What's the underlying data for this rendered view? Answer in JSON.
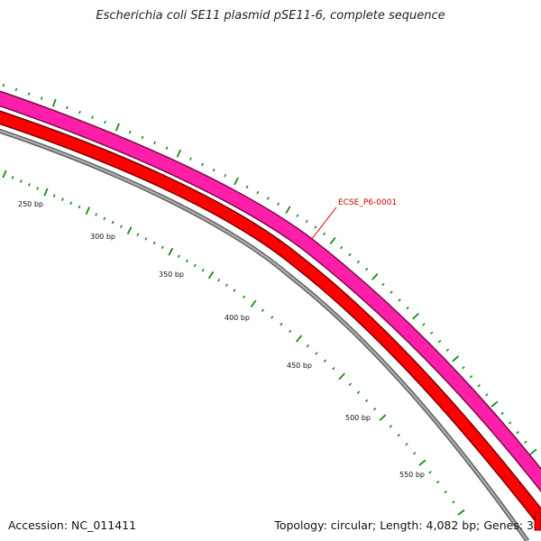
{
  "header": {
    "title": "Escherichia coli SE11 plasmid pSE11-6, complete sequence"
  },
  "footer": {
    "accession": "Accession: NC_011411",
    "summary": "Topology: circular; Length: 4,082 bp; Genes: 3"
  },
  "map": {
    "tick_labels": [
      "250 bp",
      "300 bp",
      "350 bp",
      "400 bp",
      "450 bp",
      "500 bp",
      "550 bp"
    ],
    "gene_label": "ECSE_P6-0001",
    "colors": {
      "gene_forward": "#ff1fa8",
      "gene_reverse": "#ff0000",
      "backbone": "#888888",
      "ticks": "#1a8a1a",
      "gene_label": "#cc0000"
    }
  }
}
